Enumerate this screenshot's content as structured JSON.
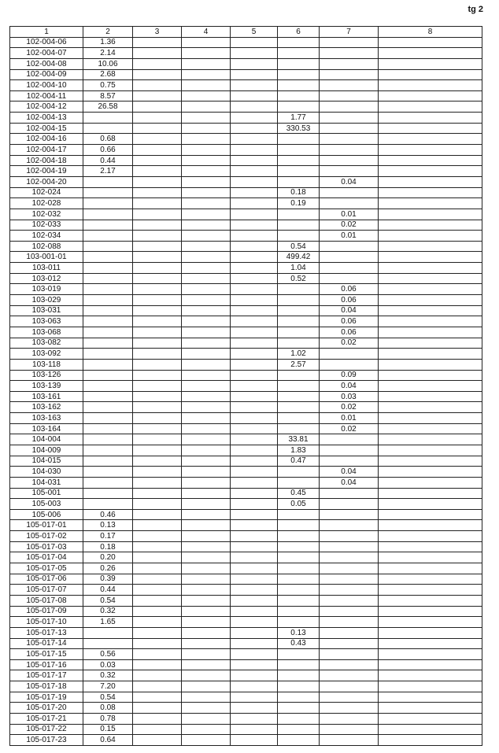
{
  "page_label": "tg 2",
  "columns": [
    "1",
    "2",
    "3",
    "4",
    "5",
    "6",
    "7",
    "8"
  ],
  "rows": [
    {
      "c1": "102-004-06",
      "c2": "1.36"
    },
    {
      "c1": "102-004-07",
      "c2": "2.14"
    },
    {
      "c1": "102-004-08",
      "c2": "10.06"
    },
    {
      "c1": "102-004-09",
      "c2": "2.68"
    },
    {
      "c1": "102-004-10",
      "c2": "0.75"
    },
    {
      "c1": "102-004-11",
      "c2": "8.57"
    },
    {
      "c1": "102-004-12",
      "c2": "26.58"
    },
    {
      "c1": "102-004-13",
      "c6": "1.77"
    },
    {
      "c1": "102-004-15",
      "c6": "330.53"
    },
    {
      "c1": "102-004-16",
      "c2": "0.68"
    },
    {
      "c1": "102-004-17",
      "c2": "0.66"
    },
    {
      "c1": "102-004-18",
      "c2": "0.44"
    },
    {
      "c1": "102-004-19",
      "c2": "2.17"
    },
    {
      "c1": "102-004-20",
      "c7": "0.04"
    },
    {
      "c1": "102-024",
      "c6": "0.18"
    },
    {
      "c1": "102-028",
      "c6": "0.19"
    },
    {
      "c1": "102-032",
      "c7": "0.01"
    },
    {
      "c1": "102-033",
      "c7": "0.02"
    },
    {
      "c1": "102-034",
      "c7": "0.01"
    },
    {
      "c1": "102-088",
      "c6": "0.54"
    },
    {
      "c1": "103-001-01",
      "c6": "499.42"
    },
    {
      "c1": "103-011",
      "c6": "1.04"
    },
    {
      "c1": "103-012",
      "c6": "0.52"
    },
    {
      "c1": "103-019",
      "c7": "0.06"
    },
    {
      "c1": "103-029",
      "c7": "0.06"
    },
    {
      "c1": "103-031",
      "c7": "0.04"
    },
    {
      "c1": "103-063",
      "c7": "0.06"
    },
    {
      "c1": "103-068",
      "c7": "0.06"
    },
    {
      "c1": "103-082",
      "c7": "0.02"
    },
    {
      "c1": "103-092",
      "c6": "1.02"
    },
    {
      "c1": "103-118",
      "c6": "2.57"
    },
    {
      "c1": "103-126",
      "c7": "0.09"
    },
    {
      "c1": "103-139",
      "c7": "0.04"
    },
    {
      "c1": "103-161",
      "c7": "0.03"
    },
    {
      "c1": "103-162",
      "c7": "0.02"
    },
    {
      "c1": "103-163",
      "c7": "0.01"
    },
    {
      "c1": "103-164",
      "c7": "0.02"
    },
    {
      "c1": "104-004",
      "c6": "33.81"
    },
    {
      "c1": "104-009",
      "c6": "1.83"
    },
    {
      "c1": "104-015",
      "c6": "0.47"
    },
    {
      "c1": "104-030",
      "c7": "0.04"
    },
    {
      "c1": "104-031",
      "c7": "0.04"
    },
    {
      "c1": "105-001",
      "c6": "0.45"
    },
    {
      "c1": "105-003",
      "c6": "0.05"
    },
    {
      "c1": "105-006",
      "c2": "0.46"
    },
    {
      "c1": "105-017-01",
      "c2": "0.13"
    },
    {
      "c1": "105-017-02",
      "c2": "0.17"
    },
    {
      "c1": "105-017-03",
      "c2": "0.18"
    },
    {
      "c1": "105-017-04",
      "c2": "0.20"
    },
    {
      "c1": "105-017-05",
      "c2": "0.26"
    },
    {
      "c1": "105-017-06",
      "c2": "0.39"
    },
    {
      "c1": "105-017-07",
      "c2": "0.44"
    },
    {
      "c1": "105-017-08",
      "c2": "0.54"
    },
    {
      "c1": "105-017-09",
      "c2": "0.32"
    },
    {
      "c1": "105-017-10",
      "c2": "1.65"
    },
    {
      "c1": "105-017-13",
      "c6": "0.13"
    },
    {
      "c1": "105-017-14",
      "c6": "0.43"
    },
    {
      "c1": "105-017-15",
      "c2": "0.56"
    },
    {
      "c1": "105-017-16",
      "c2": "0.03"
    },
    {
      "c1": "105-017-17",
      "c2": "0.32"
    },
    {
      "c1": "105-017-18",
      "c2": "7.20"
    },
    {
      "c1": "105-017-19",
      "c2": "0.54"
    },
    {
      "c1": "105-017-20",
      "c2": "0.08"
    },
    {
      "c1": "105-017-21",
      "c2": "0.78"
    },
    {
      "c1": "105-017-22",
      "c2": "0.15"
    },
    {
      "c1": "105-017-23",
      "c2": "0.64"
    }
  ]
}
